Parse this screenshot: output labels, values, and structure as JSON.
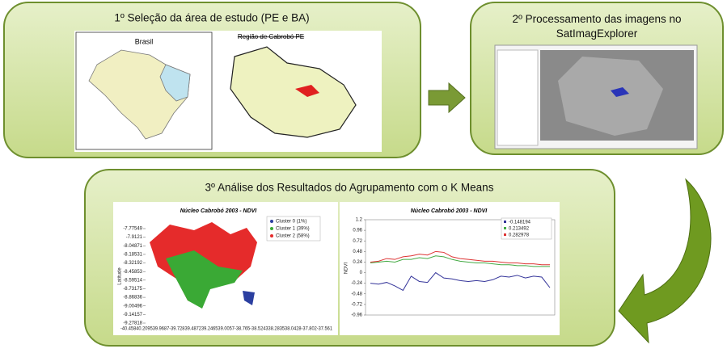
{
  "steps": [
    {
      "label": "1º Seleção da área de estudo (PE e BA)",
      "images": [
        {
          "title": "Brasil"
        },
        {
          "title": "Região de Cabrobó PE"
        }
      ]
    },
    {
      "label": "2º Processamento das imagens no SatImagExplorer"
    },
    {
      "label": "3º Análise dos Resultados do Agrupamento com o K Means"
    }
  ],
  "cluster_map": {
    "type": "map",
    "title": "Núcleo Cabrobó 2003 - NDVI",
    "y_label": "Latitude",
    "ylim": [
      -7.77549,
      -9.27818
    ],
    "yticks": [
      -7.77549,
      -7.9121,
      -8.04871,
      -8.18531,
      -8.32192,
      -8.45853,
      -8.59514,
      -8.73175,
      -8.86836,
      -9.00496,
      -9.14157,
      -9.27818
    ],
    "x_tick_text": "-40.45840.209539.9687-39.72839.487239.246539.0057-38.765-38.524338.283538.0428-37.802-37.561",
    "legend": [
      {
        "name": "Cluster 0 (1%)",
        "color": "#2b3fa0"
      },
      {
        "name": "Cluster 1 (39%)",
        "color": "#3aa935"
      },
      {
        "name": "Cluster 2 (58%)",
        "color": "#e52b2b"
      }
    ]
  },
  "ndvi_chart": {
    "type": "line",
    "title": "Núcleo Cabrobó 2003 - NDVI",
    "y_label": "NDVI",
    "ylim": [
      -0.96,
      1.2
    ],
    "yticks": [
      1.2,
      0.96,
      0.72,
      0.48,
      0.24,
      0,
      -0.24,
      -0.48,
      -0.72,
      -0.96
    ],
    "series": [
      {
        "name": "-0.148194",
        "color": "#333399",
        "values": [
          -0.24,
          -0.26,
          -0.22,
          -0.3,
          -0.4,
          -0.08,
          -0.2,
          -0.22,
          0.0,
          -0.12,
          -0.14,
          -0.18,
          -0.2,
          -0.18,
          -0.2,
          -0.16,
          -0.08,
          -0.1,
          -0.06,
          -0.12,
          -0.08,
          -0.1,
          -0.34
        ]
      },
      {
        "name": "0.213492",
        "color": "#44aa44",
        "values": [
          0.22,
          0.24,
          0.26,
          0.24,
          0.3,
          0.3,
          0.34,
          0.32,
          0.38,
          0.36,
          0.3,
          0.26,
          0.24,
          0.22,
          0.22,
          0.2,
          0.18,
          0.18,
          0.16,
          0.16,
          0.14,
          0.14,
          0.14
        ]
      },
      {
        "name": "0.282978",
        "color": "#dd3333",
        "values": [
          0.24,
          0.26,
          0.32,
          0.3,
          0.36,
          0.38,
          0.42,
          0.4,
          0.48,
          0.46,
          0.36,
          0.32,
          0.3,
          0.28,
          0.26,
          0.26,
          0.24,
          0.22,
          0.22,
          0.2,
          0.2,
          0.18,
          0.18
        ]
      }
    ]
  }
}
